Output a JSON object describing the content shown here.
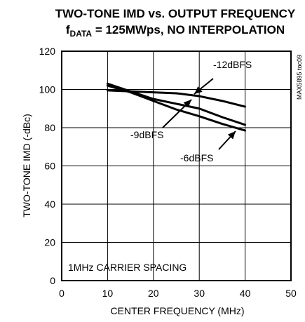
{
  "chart_data": {
    "type": "line",
    "title_line1": "TWO-TONE IMD vs. OUTPUT FREQUENCY",
    "title_line2_main": "f",
    "title_line2_sub": "DATA",
    "title_line2_rest": " = 125MWps, NO INTERPOLATION",
    "xlabel": "CENTER FREQUENCY (MHz)",
    "ylabel": "TWO-TONE IMD (-dBc)",
    "xlim": [
      0,
      50
    ],
    "ylim": [
      0,
      120
    ],
    "xticks": [
      0,
      10,
      20,
      30,
      40,
      50
    ],
    "yticks": [
      0,
      20,
      40,
      60,
      80,
      100,
      120
    ],
    "grid": true,
    "series": [
      {
        "name": "-12dBFS",
        "x": [
          10,
          15,
          20,
          25,
          30,
          35,
          40
        ],
        "y": [
          99.5,
          99,
          98.5,
          98,
          96.5,
          94,
          91
        ]
      },
      {
        "name": "-9dBFS",
        "x": [
          10,
          15,
          20,
          25,
          30,
          35,
          40
        ],
        "y": [
          103,
          99,
          95,
          92.5,
          90,
          85.5,
          81.5
        ]
      },
      {
        "name": "-6dBFS",
        "x": [
          10,
          15,
          20,
          25,
          30,
          35,
          40
        ],
        "y": [
          102,
          98.5,
          94,
          89.5,
          86,
          82,
          78.5
        ]
      }
    ],
    "annotations": [
      {
        "text": "-12dBFS",
        "series": "-12dBFS"
      },
      {
        "text": "-9dBFS",
        "series": "-9dBFS"
      },
      {
        "text": "-6dBFS",
        "series": "-6dBFS"
      }
    ],
    "note": "1MHz CARRIER SPACING",
    "side_label": "MAX5895 toc09"
  }
}
